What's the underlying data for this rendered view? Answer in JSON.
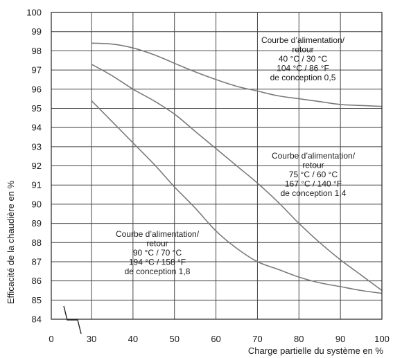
{
  "chart_data": {
    "type": "line",
    "xlabel": "Charge partielle du système en %",
    "ylabel": "Efficacité de la chaudière en %",
    "xlim": [
      0,
      100
    ],
    "ylim": [
      84,
      100
    ],
    "x_ticks": [
      0,
      30,
      40,
      50,
      60,
      70,
      80,
      90,
      100
    ],
    "y_ticks": [
      84,
      85,
      86,
      87,
      88,
      89,
      90,
      91,
      92,
      93,
      94,
      95,
      96,
      97,
      98,
      99,
      100
    ],
    "grid": true,
    "axis_break": true,
    "series": [
      {
        "x": [
          30,
          35,
          40,
          45,
          50,
          55,
          60,
          65,
          70,
          75,
          80,
          85,
          90,
          95,
          100
        ],
        "y": [
          98.4,
          98.35,
          98.15,
          97.8,
          97.35,
          96.9,
          96.5,
          96.15,
          95.9,
          95.65,
          95.5,
          95.35,
          95.2,
          95.15,
          95.1
        ],
        "annotation": [
          "Courbe d’alimentation/",
          "retour",
          "40 °C / 30 °C",
          "104 °C / 86 °F",
          "de conception 0,5"
        ]
      },
      {
        "x": [
          30,
          35,
          40,
          45,
          50,
          55,
          60,
          65,
          70,
          75,
          80,
          85,
          90,
          95,
          100
        ],
        "y": [
          97.3,
          96.7,
          96.0,
          95.4,
          94.7,
          93.8,
          92.9,
          92.0,
          91.1,
          90.1,
          89.0,
          88.0,
          87.1,
          86.3,
          85.5
        ],
        "annotation": [
          "Courbe d’alimentation/",
          "retour",
          "75 °C / 60 °C",
          "167 °C / 140 °F",
          "de conception 1,4"
        ]
      },
      {
        "x": [
          30,
          35,
          40,
          45,
          50,
          55,
          60,
          65,
          70,
          75,
          80,
          85,
          90,
          95,
          100
        ],
        "y": [
          95.4,
          94.3,
          93.2,
          92.1,
          90.9,
          89.8,
          88.6,
          87.7,
          87.0,
          86.6,
          86.2,
          85.9,
          85.7,
          85.5,
          85.35
        ],
        "annotation": [
          "Courbe d’alimentation/",
          "retour",
          "90 °C / 70 °C",
          "194 °C / 158 °F",
          "de conception 1,8"
        ]
      }
    ]
  }
}
